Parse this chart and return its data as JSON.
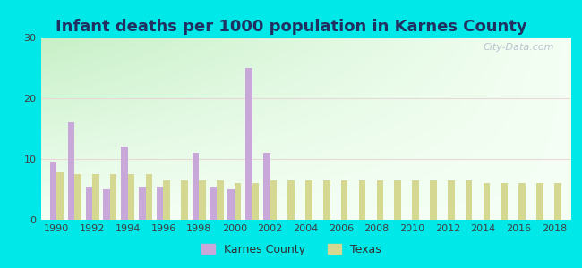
{
  "title": "Infant deaths per 1000 population in Karnes County",
  "years": [
    1990,
    1991,
    1992,
    1993,
    1994,
    1995,
    1996,
    1997,
    1998,
    1999,
    2000,
    2001,
    2002,
    2003,
    2004,
    2005,
    2006,
    2007,
    2008,
    2009,
    2010,
    2011,
    2012,
    2013,
    2014,
    2015,
    2016,
    2017,
    2018
  ],
  "karnes": [
    9.5,
    16.0,
    5.5,
    5.0,
    12.0,
    5.5,
    5.5,
    0.0,
    11.0,
    5.5,
    5.0,
    25.0,
    11.0,
    0.0,
    0.0,
    0.0,
    0.0,
    0.0,
    0.0,
    0.0,
    0.0,
    0.0,
    0.0,
    0.0,
    0.0,
    0.0,
    0.0,
    0.0,
    0.0
  ],
  "texas": [
    8.0,
    7.5,
    7.5,
    7.5,
    7.5,
    7.5,
    6.5,
    6.5,
    6.5,
    6.5,
    6.0,
    6.0,
    6.5,
    6.5,
    6.5,
    6.5,
    6.5,
    6.5,
    6.5,
    6.5,
    6.5,
    6.5,
    6.5,
    6.5,
    6.0,
    6.0,
    6.0,
    6.0,
    6.0
  ],
  "karnes_color": "#c8a8d8",
  "texas_color": "#d4d890",
  "bg_gradient_top_left": "#c8eec8",
  "bg_gradient_bottom_right": "#f0fff0",
  "outer_bg": "#00e8e8",
  "grid_color": "#e8d8d8",
  "title_color": "#203060",
  "ylim": [
    0,
    30
  ],
  "yticks": [
    0,
    10,
    20,
    30
  ],
  "xticks": [
    1990,
    1992,
    1994,
    1996,
    1998,
    2000,
    2002,
    2004,
    2006,
    2008,
    2010,
    2012,
    2014,
    2016,
    2018
  ],
  "title_fontsize": 13,
  "bar_width": 0.38,
  "legend_fontsize": 9,
  "tick_fontsize": 8,
  "watermark": "City-Data.com"
}
